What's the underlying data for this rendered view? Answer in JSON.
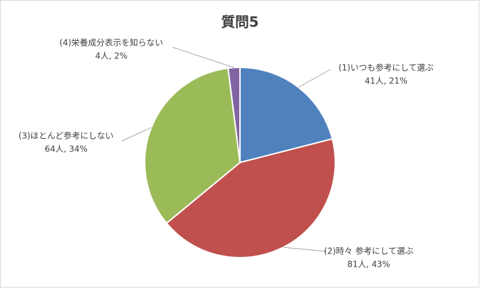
{
  "chart_data": {
    "type": "pie",
    "title": "質問5",
    "categories": [
      "(1)いつも参考にして選ぶ",
      "(2)時々 参考にして選ぶ",
      "(3)ほとんど参考にしない",
      "(4)栄養成分表示を知らない"
    ],
    "values": [
      21,
      43,
      34,
      2
    ],
    "counts": [
      41,
      81,
      64,
      4
    ],
    "value_labels": [
      "41人, 21%",
      "81人, 43%",
      "64人, 34%",
      "4人, 2%"
    ],
    "colors": [
      "#4f81bd",
      "#c0504d",
      "#9bbb59",
      "#8064a2"
    ]
  }
}
